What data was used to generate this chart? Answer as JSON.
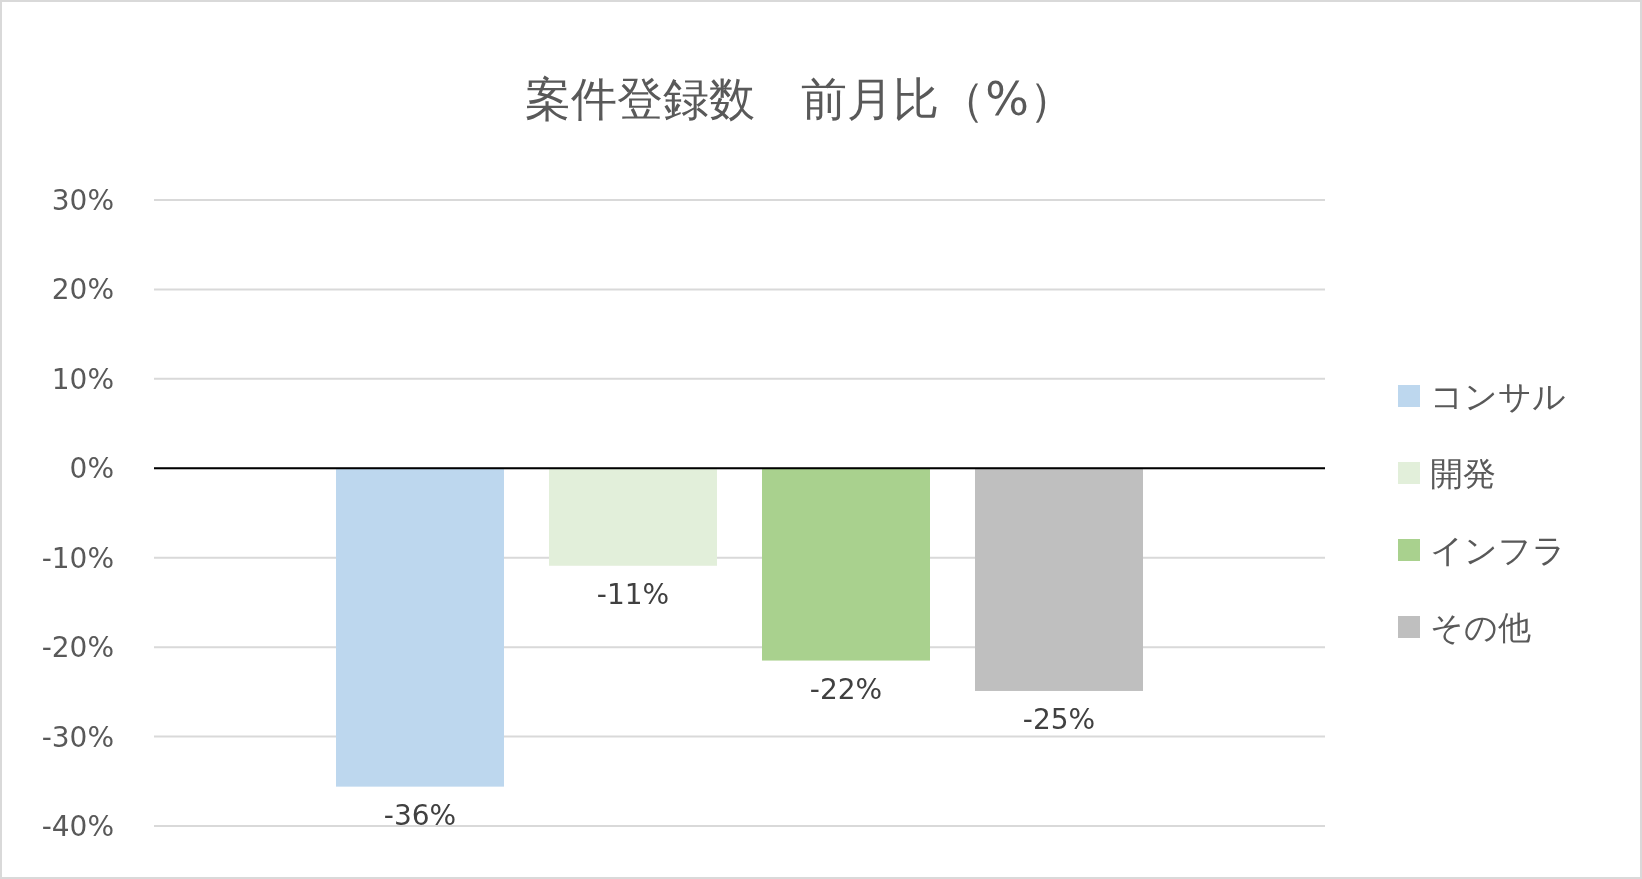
{
  "chart_data": {
    "type": "bar",
    "title": "案件登録数　前月比（%）",
    "categories": [
      null
    ],
    "series": [
      {
        "name": "コンサル",
        "color": "#bdd7ee",
        "values": [
          -35.6
        ],
        "value_labels": [
          "-36%"
        ]
      },
      {
        "name": "開発",
        "color": "#e2efda",
        "values": [
          -10.9
        ],
        "value_labels": [
          "-11%"
        ]
      },
      {
        "name": "インフラ",
        "color": "#a9d18e",
        "values": [
          -21.5
        ],
        "value_labels": [
          "-22%"
        ]
      },
      {
        "name": "その他",
        "color": "#bfbfbf",
        "values": [
          -24.9
        ],
        "value_labels": [
          "-25%"
        ]
      }
    ],
    "ylim": [
      -40,
      30
    ],
    "yticks": [
      {
        "value": 30,
        "label": "30%"
      },
      {
        "value": 20,
        "label": "20%"
      },
      {
        "value": 10,
        "label": "10%"
      },
      {
        "value": 0,
        "label": "0%"
      },
      {
        "value": -10,
        "label": "-10%"
      },
      {
        "value": -20,
        "label": "-20%"
      },
      {
        "value": -30,
        "label": "-30%"
      },
      {
        "value": -40,
        "label": "-40%"
      }
    ],
    "grid": "y",
    "legend": "right"
  }
}
